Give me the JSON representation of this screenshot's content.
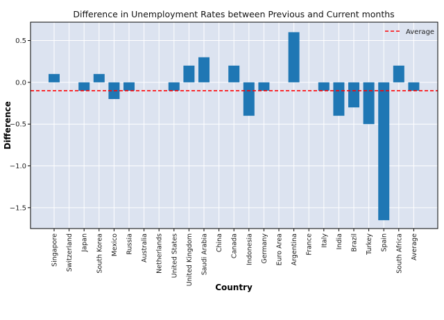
{
  "chart_data": {
    "type": "bar",
    "title": "Difference  in Unemployment Rates between Previous and Current months",
    "xlabel": "Country",
    "ylabel": "Difference",
    "categories": [
      "Singapore",
      "Switzerland",
      "Japan",
      "South Korea",
      "Mexico",
      "Russia",
      "Australia",
      "Netherlands",
      "United States",
      "United Kingdom",
      "Saudi Arabia",
      "China",
      "Canada",
      "Indonesia",
      "Germany",
      "Euro Area",
      "Argentina",
      "France",
      "Italy",
      "India",
      "Brazil",
      "Turkey",
      "Spain",
      "South Africa",
      "Average"
    ],
    "values": [
      0.1,
      0.0,
      -0.1,
      0.1,
      -0.2,
      -0.1,
      0.0,
      0.0,
      -0.1,
      0.2,
      0.3,
      0.0,
      0.2,
      -0.4,
      -0.1,
      0.0,
      0.6,
      0.0,
      -0.1,
      -0.4,
      -0.3,
      -0.5,
      -1.65,
      0.2,
      -0.1
    ],
    "yticks": [
      0.5,
      0.0,
      -0.5,
      -1.0,
      -1.5
    ],
    "ytick_labels": [
      "0.5",
      "0.0",
      "−0.5",
      "−1.0",
      "−1.5"
    ],
    "ylim": [
      -1.75,
      0.72
    ],
    "average_line": {
      "value": -0.1,
      "label": "Average",
      "color": "#ff0000"
    },
    "bar_color": "#1f77b4",
    "background_color": "#dce3f0",
    "grid": true,
    "legend_position": "top-right"
  }
}
